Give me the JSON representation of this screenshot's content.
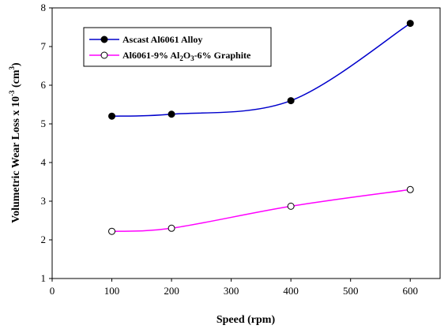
{
  "chart_data": {
    "type": "line",
    "title": "",
    "xlabel": "Speed (rpm)",
    "ylabel": {
      "prefix": "Volumetric Wear Loss x 10",
      "exponent": "-3",
      "unit_open": " (cm",
      "unit_exp": "3",
      "unit_close": ")"
    },
    "xlim": [
      0,
      650
    ],
    "ylim": [
      1,
      8
    ],
    "xticks": [
      0,
      100,
      200,
      300,
      400,
      500,
      600
    ],
    "yticks": [
      1,
      2,
      3,
      4,
      5,
      6,
      7,
      8
    ],
    "grid": false,
    "legend_position": "top-left",
    "series": [
      {
        "name": "Ascast Al6061 Alloy",
        "color": "#0000cc",
        "marker": "filled-circle",
        "x": [
          100,
          200,
          400,
          600
        ],
        "y": [
          5.2,
          5.25,
          5.6,
          7.6
        ]
      },
      {
        "name_parts": {
          "main": "Al6061-9% Al",
          "sub1": "2",
          "mid": "O",
          "sub2": "3",
          "end": "-6% Graphite"
        },
        "color": "#ff00ff",
        "marker": "open-circle",
        "x": [
          100,
          200,
          400,
          600
        ],
        "y": [
          2.22,
          2.3,
          2.87,
          3.3
        ]
      }
    ]
  }
}
